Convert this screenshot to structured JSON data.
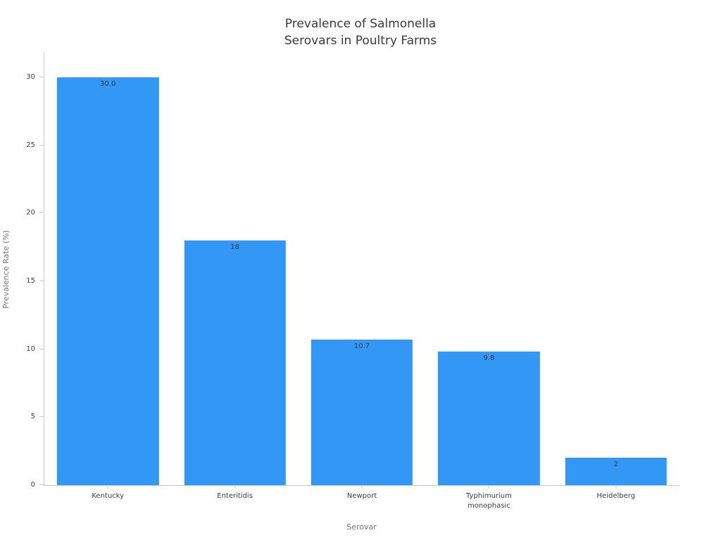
{
  "chart_data": {
    "type": "bar",
    "title": "Prevalence of Salmonella\nSerovars in Poultry Farms",
    "xlabel": "Serovar",
    "ylabel": "Prevalence Rate (%)",
    "categories": [
      "Kentucky",
      "Enteritidis",
      "Newport",
      "Typhimurium\nmonophasic",
      "Heidelberg"
    ],
    "values": [
      30.0,
      18.0,
      10.7,
      9.8,
      2.0
    ],
    "bar_labels": [
      "30.0",
      "18",
      "10.7",
      "9.8",
      "2"
    ],
    "yticks": [
      0,
      5,
      10,
      15,
      20,
      25,
      30
    ],
    "ylim": [
      0,
      31.8
    ],
    "bar_color": "#3398f5",
    "grid": false,
    "legend_position": "none",
    "background_color": "#ffffff"
  }
}
